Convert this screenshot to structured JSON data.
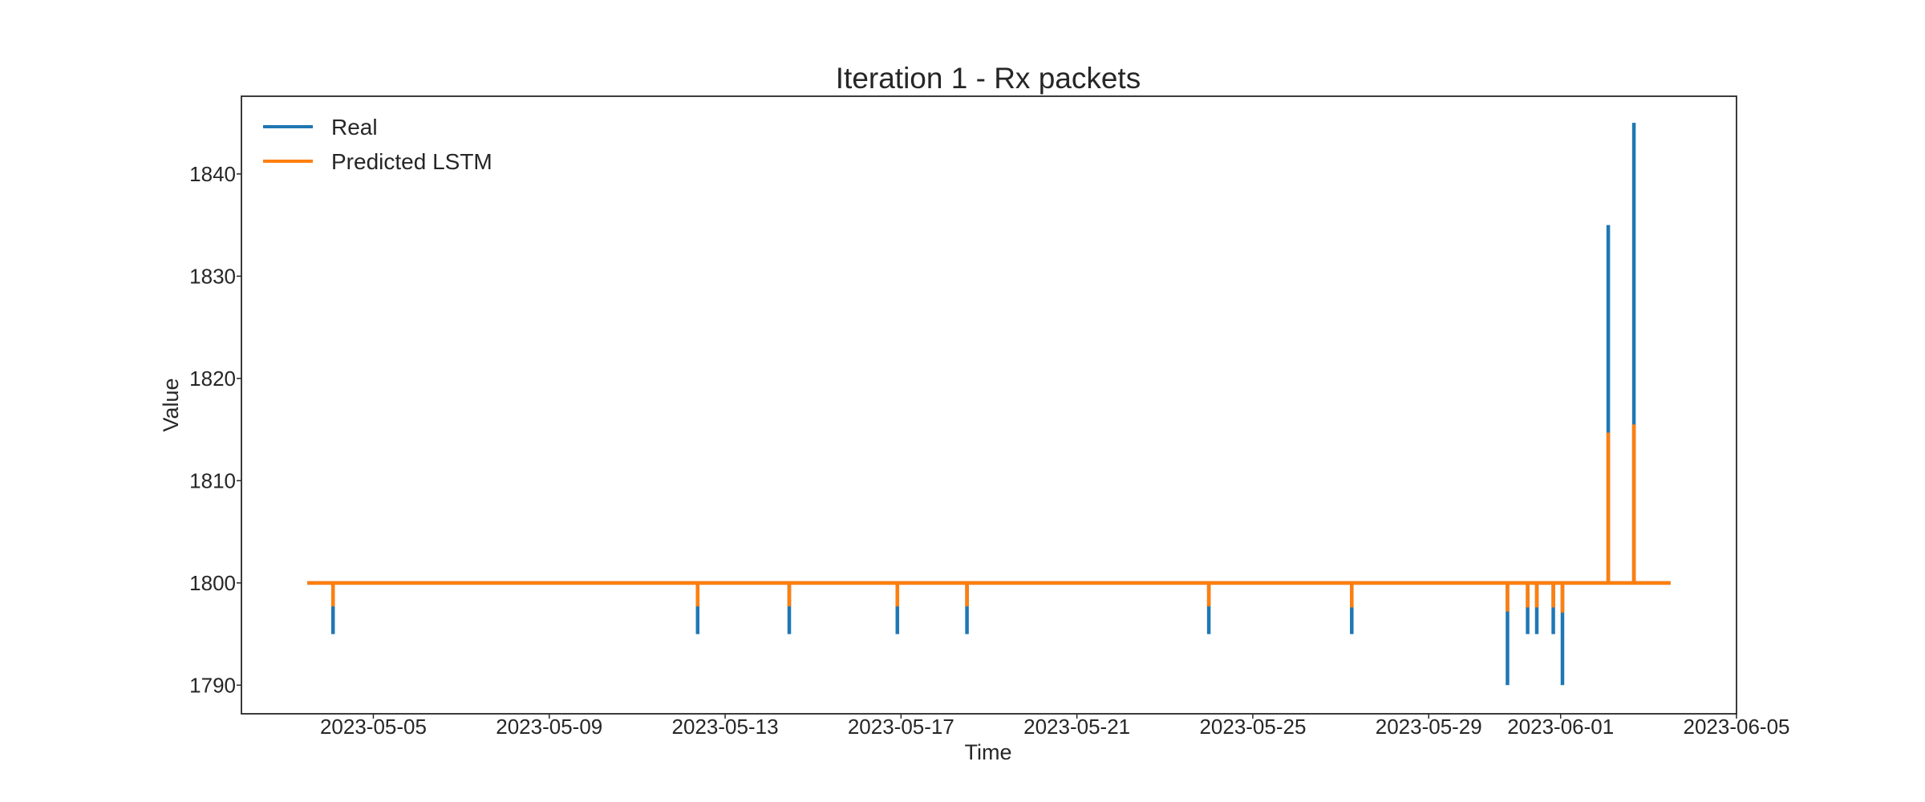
{
  "chart_data": {
    "type": "line",
    "title": "Iteration 1 - Rx packets",
    "xlabel": "Time",
    "ylabel": "Value",
    "xlim": [
      "2023-05-02T00:00",
      "2023-06-05T00:00"
    ],
    "ylim": [
      1787.2,
      1847.6
    ],
    "xtick_labels": [
      "2023-05-05",
      "2023-05-09",
      "2023-05-13",
      "2023-05-17",
      "2023-05-21",
      "2023-05-25",
      "2023-05-29",
      "2023-06-01",
      "2023-06-05"
    ],
    "xtick_dates": [
      "2023-05-05",
      "2023-05-09",
      "2023-05-13",
      "2023-05-17",
      "2023-05-21",
      "2023-05-25",
      "2023-05-29",
      "2023-06-01",
      "2023-06-05"
    ],
    "ytick_values": [
      1790,
      1800,
      1810,
      1820,
      1830,
      1840
    ],
    "ytick_labels": [
      "1790",
      "1800",
      "1810",
      "1820",
      "1830",
      "1840"
    ],
    "grid": false,
    "legend_position": "upper-left",
    "baseline": 1800,
    "x_start": "2023-05-03T12:00",
    "x_end": "2023-06-03T12:00",
    "series": [
      {
        "name": "Real",
        "color": "#1f77b4",
        "events": [
          {
            "t": "2023-05-04T02:00",
            "v": 1795
          },
          {
            "t": "2023-05-12T09:00",
            "v": 1795
          },
          {
            "t": "2023-05-14T11:00",
            "v": 1795
          },
          {
            "t": "2023-05-16T22:00",
            "v": 1795
          },
          {
            "t": "2023-05-18T12:00",
            "v": 1795
          },
          {
            "t": "2023-05-24T00:00",
            "v": 1795
          },
          {
            "t": "2023-05-27T06:00",
            "v": 1795
          },
          {
            "t": "2023-05-30T19:00",
            "v": 1790
          },
          {
            "t": "2023-05-31T06:00",
            "v": 1795
          },
          {
            "t": "2023-05-31T11:00",
            "v": 1795
          },
          {
            "t": "2023-05-31T20:00",
            "v": 1795
          },
          {
            "t": "2023-06-01T01:00",
            "v": 1790
          },
          {
            "t": "2023-06-02T02:00",
            "v": 1835
          },
          {
            "t": "2023-06-02T16:00",
            "v": 1845
          }
        ]
      },
      {
        "name": "Predicted LSTM",
        "color": "#ff7f0e",
        "events": [
          {
            "t": "2023-05-04T02:00",
            "v": 1797.7
          },
          {
            "t": "2023-05-12T09:00",
            "v": 1797.7
          },
          {
            "t": "2023-05-14T11:00",
            "v": 1797.7
          },
          {
            "t": "2023-05-16T22:00",
            "v": 1797.7
          },
          {
            "t": "2023-05-18T12:00",
            "v": 1797.7
          },
          {
            "t": "2023-05-24T00:00",
            "v": 1797.7
          },
          {
            "t": "2023-05-27T06:00",
            "v": 1797.6
          },
          {
            "t": "2023-05-30T19:00",
            "v": 1797.2
          },
          {
            "t": "2023-05-31T06:00",
            "v": 1797.6
          },
          {
            "t": "2023-05-31T11:00",
            "v": 1797.6
          },
          {
            "t": "2023-05-31T20:00",
            "v": 1797.6
          },
          {
            "t": "2023-06-01T01:00",
            "v": 1797.1
          },
          {
            "t": "2023-06-02T02:00",
            "v": 1814.7
          },
          {
            "t": "2023-06-02T16:00",
            "v": 1815.5
          }
        ]
      }
    ]
  }
}
